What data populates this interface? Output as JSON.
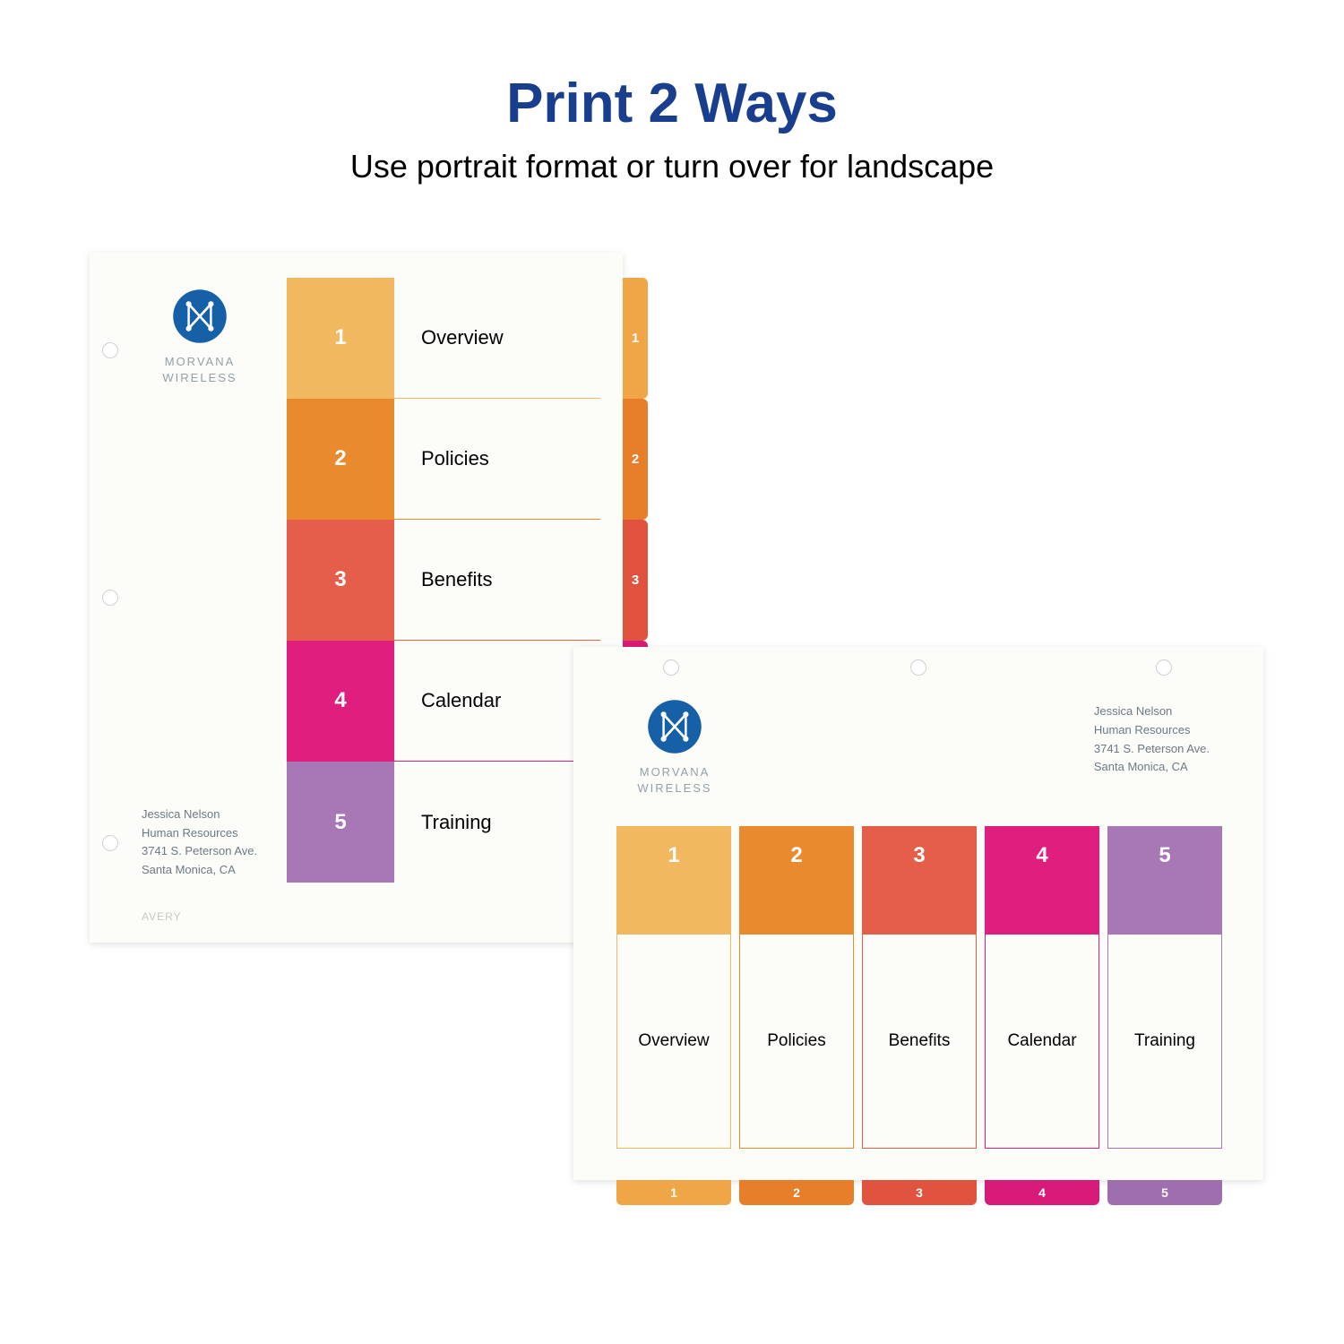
{
  "header": {
    "title": "Print 2 Ways",
    "subtitle": "Use portrait format or turn over for landscape",
    "title_color": "#1a3e8e"
  },
  "company": {
    "name_line1": "MORVANA",
    "name_line2": "WIRELESS",
    "logo_color": "#1560a6"
  },
  "contact": {
    "name": "Jessica Nelson",
    "dept": "Human Resources",
    "addr": "3741 S. Peterson Ave.",
    "city": "Santa Monica, CA"
  },
  "brand": "AVERY",
  "tabs": [
    {
      "num": "1",
      "label": "Overview",
      "color": "#f2b860",
      "tab_color": "#f0a646"
    },
    {
      "num": "2",
      "label": "Policies",
      "color": "#ea8a2e",
      "tab_color": "#e77e2a"
    },
    {
      "num": "3",
      "label": "Benefits",
      "color": "#e45e4a",
      "tab_color": "#e0543f"
    },
    {
      "num": "4",
      "label": "Calendar",
      "color": "#e01e7e",
      "tab_color": "#d81b78"
    },
    {
      "num": "5",
      "label": "Training",
      "color": "#a877b6",
      "tab_color": "#9e6eae"
    }
  ]
}
